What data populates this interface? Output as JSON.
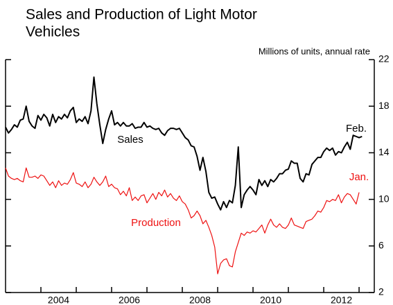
{
  "chart_data": {
    "type": "line",
    "title_lines": [
      "Sales and Production of Light Motor",
      "Vehicles"
    ],
    "y_axis_label": "Millions of units, annual rate",
    "annotations": [
      "Sales",
      "Production",
      "Feb.",
      "Jan."
    ],
    "x": [
      2003,
      2003.083,
      2003.167,
      2003.25,
      2003.333,
      2003.417,
      2003.5,
      2003.583,
      2003.667,
      2003.75,
      2003.833,
      2003.917,
      2004,
      2004.083,
      2004.167,
      2004.25,
      2004.333,
      2004.417,
      2004.5,
      2004.583,
      2004.667,
      2004.75,
      2004.833,
      2004.917,
      2005,
      2005.083,
      2005.167,
      2005.25,
      2005.333,
      2005.417,
      2005.5,
      2005.583,
      2005.667,
      2005.75,
      2005.833,
      2005.917,
      2006,
      2006.083,
      2006.167,
      2006.25,
      2006.333,
      2006.417,
      2006.5,
      2006.583,
      2006.667,
      2006.75,
      2006.833,
      2006.917,
      2007,
      2007.083,
      2007.167,
      2007.25,
      2007.333,
      2007.417,
      2007.5,
      2007.583,
      2007.667,
      2007.75,
      2007.833,
      2007.917,
      2008,
      2008.083,
      2008.167,
      2008.25,
      2008.333,
      2008.417,
      2008.5,
      2008.583,
      2008.667,
      2008.75,
      2008.833,
      2008.917,
      2009,
      2009.083,
      2009.167,
      2009.25,
      2009.333,
      2009.417,
      2009.5,
      2009.583,
      2009.667,
      2009.75,
      2009.833,
      2009.917,
      2010,
      2010.083,
      2010.167,
      2010.25,
      2010.333,
      2010.417,
      2010.5,
      2010.583,
      2010.667,
      2010.75,
      2010.833,
      2010.917,
      2011,
      2011.083,
      2011.167,
      2011.25,
      2011.333,
      2011.417,
      2011.5,
      2011.583,
      2011.667,
      2011.75,
      2011.833,
      2011.917,
      2012,
      2012.083,
      2012.167,
      2012.25,
      2012.333,
      2012.417,
      2012.5,
      2012.583,
      2012.667,
      2012.75,
      2012.833,
      2012.917,
      2013,
      2013.083
    ],
    "series": [
      {
        "name": "Sales",
        "color": "#000000",
        "values": [
          16.2,
          15.7,
          16.0,
          16.4,
          16.2,
          16.8,
          16.9,
          18.0,
          16.7,
          16.3,
          16.1,
          17.2,
          16.8,
          17.3,
          17.0,
          16.3,
          17.3,
          16.6,
          17.1,
          16.9,
          17.3,
          17.0,
          17.6,
          17.9,
          16.6,
          16.9,
          16.7,
          17.1,
          16.5,
          17.6,
          20.5,
          18.2,
          16.4,
          14.8,
          16.0,
          16.9,
          17.6,
          16.4,
          16.6,
          16.3,
          16.6,
          16.3,
          16.3,
          16.5,
          16.1,
          16.2,
          16.2,
          16.6,
          16.2,
          16.3,
          16.1,
          16.0,
          16.1,
          15.7,
          15.5,
          15.9,
          16.1,
          16.1,
          16.0,
          16.1,
          15.7,
          15.3,
          15.1,
          14.6,
          14.5,
          13.7,
          12.5,
          13.6,
          12.4,
          10.6,
          10.1,
          10.2,
          9.6,
          9.1,
          9.8,
          9.3,
          9.9,
          9.7,
          11.2,
          14.5,
          9.3,
          10.4,
          10.8,
          11.1,
          10.8,
          10.4,
          11.7,
          11.2,
          11.6,
          11.1,
          11.7,
          11.5,
          11.8,
          12.2,
          12.2,
          12.5,
          12.6,
          13.3,
          13.1,
          13.1,
          11.8,
          11.5,
          12.2,
          12.1,
          13.0,
          13.3,
          13.6,
          13.6,
          14.1,
          14.4,
          14.2,
          14.4,
          13.8,
          14.1,
          14.0,
          14.5,
          14.9,
          14.3,
          15.5,
          15.4,
          15.3,
          15.4
        ]
      },
      {
        "name": "Production",
        "color": "#ee1111",
        "values": [
          12.7,
          12.0,
          11.8,
          11.7,
          11.8,
          11.6,
          11.5,
          12.7,
          11.9,
          11.9,
          12.0,
          11.8,
          12.1,
          12.0,
          11.6,
          11.2,
          11.5,
          11.0,
          11.6,
          11.2,
          11.4,
          11.3,
          11.7,
          12.3,
          11.4,
          11.3,
          11.1,
          11.5,
          11.0,
          11.3,
          11.9,
          11.5,
          11.2,
          11.5,
          12.0,
          11.1,
          11.3,
          11.0,
          10.9,
          10.4,
          10.7,
          10.3,
          11.0,
          9.9,
          10.2,
          9.9,
          10.3,
          10.4,
          9.7,
          10.1,
          10.5,
          10.0,
          10.6,
          10.3,
          10.8,
          10.2,
          10.5,
          10.1,
          9.9,
          10.3,
          9.8,
          9.6,
          9.1,
          8.4,
          8.6,
          9.0,
          8.6,
          7.9,
          8.2,
          7.6,
          6.9,
          5.9,
          3.6,
          4.5,
          4.8,
          4.9,
          4.3,
          4.2,
          5.5,
          6.3,
          7.1,
          6.9,
          7.2,
          7.1,
          7.3,
          7.2,
          7.5,
          7.8,
          7.1,
          7.8,
          8.3,
          7.8,
          7.6,
          7.9,
          7.6,
          7.5,
          7.8,
          8.4,
          7.8,
          7.7,
          7.6,
          7.5,
          8.1,
          8.2,
          8.3,
          8.6,
          9.0,
          8.9,
          9.3,
          9.9,
          9.8,
          10.0,
          9.9,
          10.4,
          9.7,
          10.2,
          10.5,
          10.4,
          10.0,
          9.6,
          10.6,
          null
        ]
      }
    ],
    "xlim": [
      2003,
      2013.43
    ],
    "xticks": [
      {
        "value": 2004.5,
        "label": "2004"
      },
      {
        "value": 2006.5,
        "label": "2006"
      },
      {
        "value": 2008.5,
        "label": "2008"
      },
      {
        "value": 2010.5,
        "label": "2010"
      },
      {
        "value": 2012.5,
        "label": "2012"
      }
    ],
    "xminorticks": [
      2004,
      2005,
      2006,
      2007,
      2008,
      2009,
      2010,
      2011,
      2012,
      2013
    ],
    "ylim": [
      2,
      22
    ],
    "yticks": [
      2,
      6,
      10,
      14,
      18,
      22
    ],
    "grid": false
  }
}
